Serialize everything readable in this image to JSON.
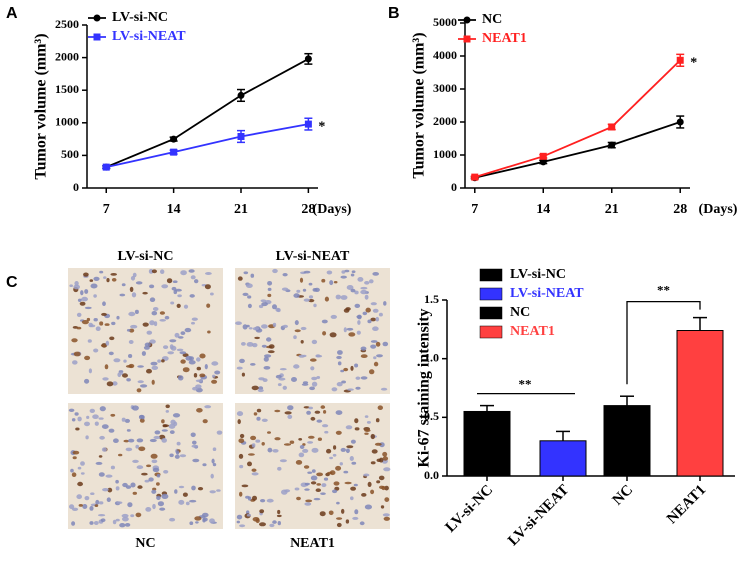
{
  "panels": [
    "A",
    "B",
    "C"
  ],
  "chart_data": [
    {
      "type": "line",
      "xlabel": "(Days)",
      "ylabel": "Tumor volume (mm³)",
      "x": [
        7,
        14,
        21,
        28
      ],
      "xlim": [
        5,
        29
      ],
      "xticks": [
        7,
        14,
        21,
        28
      ],
      "ylim": [
        0,
        2500
      ],
      "yticks": [
        0,
        500,
        1000,
        1500,
        2000,
        2500
      ],
      "series": [
        {
          "name": "LV-si-NC",
          "color": "#000000",
          "marker": "circle",
          "values": [
            320,
            750,
            1420,
            1980
          ],
          "errors": [
            20,
            30,
            90,
            80
          ]
        },
        {
          "name": "LV-si-NEAT",
          "color": "#3333ff",
          "marker": "square",
          "values": [
            320,
            550,
            790,
            980
          ],
          "errors": [
            20,
            30,
            90,
            90
          ]
        }
      ],
      "annotations": [
        "*"
      ]
    },
    {
      "type": "line",
      "xlabel": "(Days)",
      "ylabel": "Tumor volume (mm³)",
      "x": [
        7,
        14,
        21,
        28
      ],
      "xlim": [
        6,
        29
      ],
      "xticks": [
        7,
        14,
        21,
        28
      ],
      "ylim": [
        0,
        5000
      ],
      "yticks": [
        0,
        1000,
        2000,
        3000,
        4000,
        5000
      ],
      "series": [
        {
          "name": "NC",
          "color": "#000000",
          "marker": "circle",
          "values": [
            310,
            790,
            1300,
            2000
          ],
          "errors": [
            30,
            50,
            80,
            180
          ]
        },
        {
          "name": "NEAT1",
          "color": "#ff2020",
          "marker": "square",
          "values": [
            330,
            960,
            1850,
            3870
          ],
          "errors": [
            30,
            50,
            80,
            180
          ]
        }
      ],
      "annotations": [
        "*"
      ]
    },
    {
      "type": "bar",
      "ylabel": "Ki-67 staining intensity",
      "categories": [
        "LV-si-NC",
        "LV-si-NEAT",
        "NC",
        "NEAT1"
      ],
      "values": [
        0.55,
        0.3,
        0.6,
        1.24
      ],
      "errors": [
        0.05,
        0.08,
        0.08,
        0.11
      ],
      "colors": [
        "#000000",
        "#3333ff",
        "#000000",
        "#ff4040"
      ],
      "ylim": [
        0,
        1.5
      ],
      "yticks": [
        {
          "value": 0,
          "label": "0.0"
        },
        0.5,
        {
          "value": 1,
          "label": "1.0"
        },
        1.5
      ],
      "annotations": [
        "**",
        "**"
      ]
    }
  ],
  "images": {
    "labels": [
      "LV-si-NC",
      "LV-si-NEAT",
      "NC",
      "NEAT1"
    ]
  }
}
